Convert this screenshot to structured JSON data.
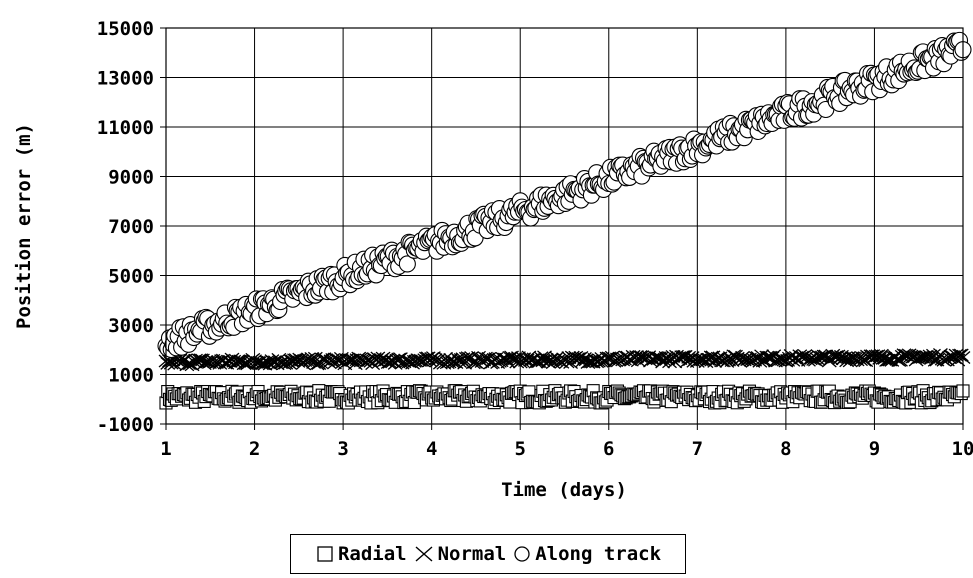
{
  "chart_data": {
    "type": "scatter",
    "title": "",
    "xlabel": "Time (days)",
    "ylabel": "Position error (m)",
    "xlim": [
      1,
      10
    ],
    "ylim": [
      -1000,
      15000
    ],
    "x_ticks": [
      1,
      2,
      3,
      4,
      5,
      6,
      7,
      8,
      9,
      10
    ],
    "y_ticks": [
      -1000,
      1000,
      3000,
      5000,
      7000,
      9000,
      11000,
      13000,
      15000
    ],
    "grid": true,
    "legend_position": "bottom",
    "series": [
      {
        "name": "Radial",
        "marker": "square",
        "band": {
          "center_start": 100,
          "center_end": 100,
          "half_width": 250
        }
      },
      {
        "name": "Normal",
        "marker": "x",
        "band": {
          "center_start": 1500,
          "center_end": 1700,
          "half_width": 120
        }
      },
      {
        "name": "Along track",
        "marker": "circle",
        "band": {
          "center_start": 2300,
          "center_end": 14200,
          "half_width": 450
        }
      }
    ]
  }
}
